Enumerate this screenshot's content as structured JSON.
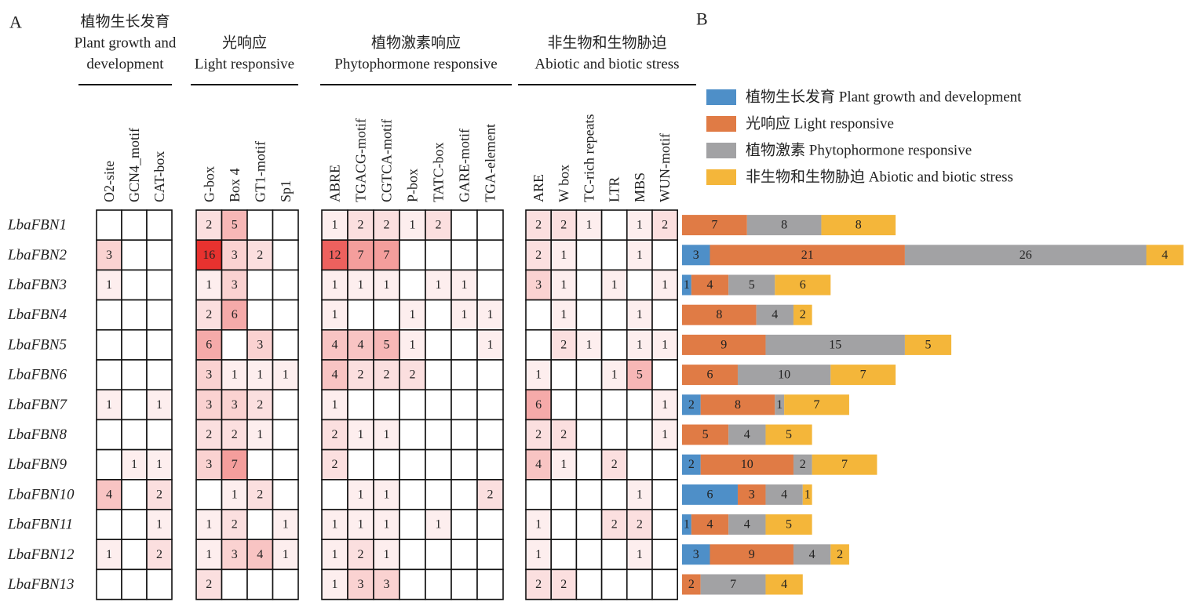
{
  "panel_a": {
    "label": "A",
    "groups": [
      {
        "title": [
          "植物生长发育",
          "Plant growth and",
          "development"
        ],
        "columns": [
          "O2-site",
          "GCN4_motif",
          "CAT-box"
        ]
      },
      {
        "title": [
          "光响应",
          "Light responsive"
        ],
        "columns": [
          "G-box",
          "Box 4",
          "GT1-motif",
          "Sp1"
        ]
      },
      {
        "title": [
          "植物激素响应",
          "Phytophormone responsive"
        ],
        "columns": [
          "ABRE",
          "TGACG-motif",
          "CGTCA-motif",
          "P-box",
          "TATC-box",
          "GARE-motif",
          "TGA-element"
        ]
      },
      {
        "title": [
          "非生物和生物胁迫",
          "Abiotic and biotic stress"
        ],
        "columns": [
          "ARE",
          "W box",
          "TC-rich repeats",
          "LTR",
          "MBS",
          "WUN-motif"
        ]
      }
    ],
    "rows": [
      {
        "gene": "LbaFBN1",
        "values": [
          [
            null,
            null,
            null
          ],
          [
            2,
            5,
            null,
            null
          ],
          [
            1,
            2,
            2,
            1,
            2,
            null,
            null
          ],
          [
            2,
            2,
            1,
            null,
            1,
            2
          ]
        ]
      },
      {
        "gene": "LbaFBN2",
        "values": [
          [
            3,
            null,
            null
          ],
          [
            16,
            3,
            2,
            null
          ],
          [
            12,
            7,
            7,
            null,
            null,
            null,
            null
          ],
          [
            2,
            1,
            null,
            null,
            1,
            null
          ]
        ]
      },
      {
        "gene": "LbaFBN3",
        "values": [
          [
            1,
            null,
            null
          ],
          [
            1,
            3,
            null,
            null
          ],
          [
            1,
            1,
            1,
            null,
            1,
            1,
            null
          ],
          [
            3,
            1,
            null,
            1,
            null,
            1
          ]
        ]
      },
      {
        "gene": "LbaFBN4",
        "values": [
          [
            null,
            null,
            null
          ],
          [
            2,
            6,
            null,
            null
          ],
          [
            1,
            null,
            null,
            1,
            null,
            1,
            1
          ],
          [
            null,
            1,
            null,
            null,
            1,
            null
          ]
        ]
      },
      {
        "gene": "LbaFBN5",
        "values": [
          [
            null,
            null,
            null
          ],
          [
            6,
            null,
            3,
            null
          ],
          [
            4,
            4,
            5,
            1,
            null,
            null,
            1
          ],
          [
            null,
            2,
            1,
            null,
            1,
            1
          ]
        ]
      },
      {
        "gene": "LbaFBN6",
        "values": [
          [
            null,
            null,
            null
          ],
          [
            3,
            1,
            1,
            1
          ],
          [
            4,
            2,
            2,
            2,
            null,
            null,
            null
          ],
          [
            1,
            null,
            null,
            1,
            5,
            null
          ]
        ]
      },
      {
        "gene": "LbaFBN7",
        "values": [
          [
            1,
            null,
            1
          ],
          [
            3,
            3,
            2,
            null
          ],
          [
            1,
            null,
            null,
            null,
            null,
            null,
            null
          ],
          [
            6,
            null,
            null,
            null,
            null,
            1
          ]
        ]
      },
      {
        "gene": "LbaFBN8",
        "values": [
          [
            null,
            null,
            null
          ],
          [
            2,
            2,
            1,
            null
          ],
          [
            2,
            1,
            1,
            null,
            null,
            null,
            null
          ],
          [
            2,
            2,
            null,
            null,
            null,
            1
          ]
        ]
      },
      {
        "gene": "LbaFBN9",
        "values": [
          [
            null,
            1,
            1
          ],
          [
            3,
            7,
            null,
            null
          ],
          [
            2,
            null,
            null,
            null,
            null,
            null,
            null
          ],
          [
            4,
            1,
            null,
            2,
            null,
            null
          ]
        ]
      },
      {
        "gene": "LbaFBN10",
        "values": [
          [
            4,
            null,
            2
          ],
          [
            null,
            1,
            2,
            null
          ],
          [
            null,
            1,
            1,
            null,
            null,
            null,
            2
          ],
          [
            null,
            null,
            null,
            null,
            1,
            null
          ]
        ]
      },
      {
        "gene": "LbaFBN11",
        "values": [
          [
            null,
            null,
            1
          ],
          [
            1,
            2,
            null,
            1
          ],
          [
            1,
            1,
            1,
            null,
            1,
            null,
            null
          ],
          [
            1,
            null,
            null,
            2,
            2,
            null
          ]
        ]
      },
      {
        "gene": "LbaFBN12",
        "values": [
          [
            1,
            null,
            2
          ],
          [
            1,
            3,
            4,
            1
          ],
          [
            1,
            2,
            1,
            null,
            null,
            null,
            null
          ],
          [
            1,
            null,
            null,
            null,
            1,
            null
          ]
        ]
      },
      {
        "gene": "LbaFBN13",
        "values": [
          [
            null,
            null,
            null
          ],
          [
            2,
            null,
            null,
            null
          ],
          [
            1,
            3,
            3,
            null,
            null,
            null,
            null
          ],
          [
            2,
            2,
            null,
            null,
            null,
            null
          ]
        ]
      }
    ]
  },
  "chart_data": {
    "type": "bar",
    "stacked": true,
    "orientation": "horizontal",
    "panel_label": "B",
    "series": [
      {
        "name": "植物生长发育 Plant growth and development",
        "color": "#4e8fc8",
        "values": [
          null,
          3,
          1,
          null,
          null,
          null,
          2,
          null,
          2,
          6,
          1,
          3,
          null
        ]
      },
      {
        "name": "光响应 Light responsive",
        "color": "#e07b45",
        "values": [
          7,
          21,
          4,
          8,
          9,
          6,
          8,
          5,
          10,
          3,
          4,
          9,
          2
        ]
      },
      {
        "name": "植物激素 Phytophormone responsive",
        "color": "#a2a2a4",
        "values": [
          8,
          26,
          5,
          4,
          15,
          10,
          1,
          4,
          2,
          4,
          4,
          4,
          7
        ]
      },
      {
        "name": "非生物和生物胁迫 Abiotic and biotic stress",
        "color": "#f4b63a",
        "values": [
          8,
          4,
          6,
          2,
          5,
          7,
          7,
          5,
          7,
          1,
          5,
          2,
          4
        ]
      }
    ]
  }
}
